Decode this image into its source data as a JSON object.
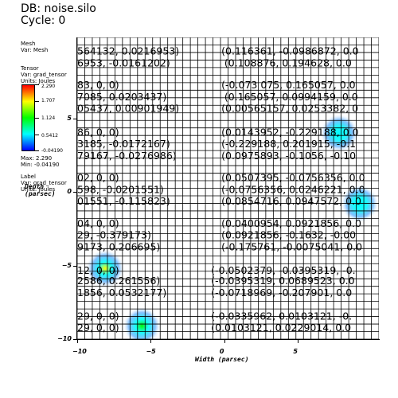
{
  "header": {
    "db": "DB: noise.silo",
    "cycle": "Cycle: 0"
  },
  "mesh_legend": {
    "title": "Mesh",
    "var": "Var: Mesh"
  },
  "tensor_legend": {
    "title": "Tensor",
    "var": "Var: grad_tensor",
    "units": "Units: Joules"
  },
  "colorbar": {
    "colors": [
      "#ff0000",
      "#ffff00",
      "#00ff00",
      "#00ffff",
      "#0000ff"
    ],
    "labels": [
      "2.290",
      "1.707",
      "1.124",
      "0.5412",
      "-0.04190"
    ]
  },
  "minmax": {
    "max": "Max: 2.290",
    "min": "Min: -0.04190"
  },
  "label_legend": {
    "title": "Label",
    "var": "Var: grad_tensor",
    "units": "Units: Joules"
  },
  "axes": {
    "x_title": "Width (parsec)",
    "y_title": [
      "Depth",
      "(parsec)"
    ],
    "x_ticks": [
      "−10",
      "−5",
      "0",
      "5"
    ],
    "y_ticks": [
      "5",
      "0",
      "−5",
      "−10"
    ]
  },
  "tensor_labels": [
    {
      "text": "564132, 0.0216953)",
      "x": -10.0,
      "y": 9.6
    },
    {
      "text": "(0.116361, -0.0986872, 0.0",
      "x": -0.2,
      "y": 9.6
    },
    {
      "text": "6953, -0.0161202)",
      "x": -10.0,
      "y": 8.8
    },
    {
      "text": "(0.108876, 0.194628, 0.0",
      "x": 0.0,
      "y": 8.8
    },
    {
      "text": "83, 0, 0)",
      "x": -10.0,
      "y": 7.3
    },
    {
      "text": "(-0.073 075, 0.165057, 0.0",
      "x": -0.2,
      "y": 7.3
    },
    {
      "text": "7085, 0.0203437)",
      "x": -10.0,
      "y": 6.5
    },
    {
      "text": "(0.165057, 0.0994159, 0.0",
      "x": 0.0,
      "y": 6.5
    },
    {
      "text": "05437, 0.00901949)",
      "x": -10.0,
      "y": 5.7
    },
    {
      "text": "(0.00565157, 0.0253382, 0",
      "x": -0.2,
      "y": 5.7
    },
    {
      "text": "86, 0, 0)",
      "x": -10.0,
      "y": 4.1
    },
    {
      "text": "(0.0143952, -0.229188, 0.0",
      "x": -0.2,
      "y": 4.1
    },
    {
      "text": "3185, -0.0172167)",
      "x": -10.0,
      "y": 3.3
    },
    {
      "text": "(-0.229188, 0.201915, -0.1",
      "x": -0.2,
      "y": 3.3
    },
    {
      "text": "79167, -0.0276986)",
      "x": -10.0,
      "y": 2.5
    },
    {
      "text": "(0.0975893, -0.1056, -0.10",
      "x": -0.2,
      "y": 2.5
    },
    {
      "text": "02, 0, 0)",
      "x": -10.0,
      "y": 1.0
    },
    {
      "text": "(0.0507395, -0.0756356, 0.0",
      "x": -0.2,
      "y": 1.0
    },
    {
      "text": "598, -0.0201551)",
      "x": -10.0,
      "y": 0.2
    },
    {
      "text": "(-0.0756356, 0.0246221, 0.0",
      "x": -0.2,
      "y": 0.2
    },
    {
      "text": "01551, -0.115823)",
      "x": -10.0,
      "y": -0.6
    },
    {
      "text": "(0.0854716, 0.0947572, 0.0",
      "x": -0.2,
      "y": -0.6
    },
    {
      "text": "04, 0, 0)",
      "x": -10.0,
      "y": -2.1
    },
    {
      "text": "(0.0400954, 0.0921856, 0.0",
      "x": -0.2,
      "y": -2.1
    },
    {
      "text": "29, -0.379173)",
      "x": -10.0,
      "y": -2.9
    },
    {
      "text": "(0.0921856, -0.1632, -0.00",
      "x": -0.2,
      "y": -2.9
    },
    {
      "text": "9173, 0.206695)",
      "x": -10.0,
      "y": -3.7
    },
    {
      "text": "(-0.175761, -0.0075041, 0.0",
      "x": -0.2,
      "y": -3.7
    },
    {
      "text": "12, 0, 0)",
      "x": -10.0,
      "y": -5.3
    },
    {
      "text": "(-0.0502379, -0.0395319, -0.",
      "x": -0.9,
      "y": -5.3
    },
    {
      "text": "2586, 0.261556)",
      "x": -10.0,
      "y": -6.0
    },
    {
      "text": "(-0.0395319, 0.0689523, 0.0",
      "x": -0.9,
      "y": -6.0
    },
    {
      "text": "1856, 0.0532177)",
      "x": -10.0,
      "y": -6.8
    },
    {
      "text": "(-0.0718969, -0.207901, 0.0",
      "x": -0.9,
      "y": -6.8
    },
    {
      "text": "29, 0, 0)",
      "x": -10.0,
      "y": -8.4
    },
    {
      "text": "(-0.0335962, 0.0103121, -0.",
      "x": -0.9,
      "y": -8.4
    },
    {
      "text": "29, 0, 0)",
      "x": -10.0,
      "y": -9.2
    },
    {
      "text": "(0.0103121, 0.0229014, 0.0",
      "x": -0.9,
      "y": -9.2
    }
  ],
  "field_blobs": [
    {
      "x": -8.1,
      "y": -5.2,
      "peak_color": "#ffff00"
    },
    {
      "x": 7.8,
      "y": 4.0,
      "peak_color": "#00ffff"
    },
    {
      "x": -5.6,
      "y": -9.1,
      "peak_color": "#00ff00"
    },
    {
      "x": 9.2,
      "y": -0.8,
      "peak_color": "#00ffff"
    }
  ]
}
